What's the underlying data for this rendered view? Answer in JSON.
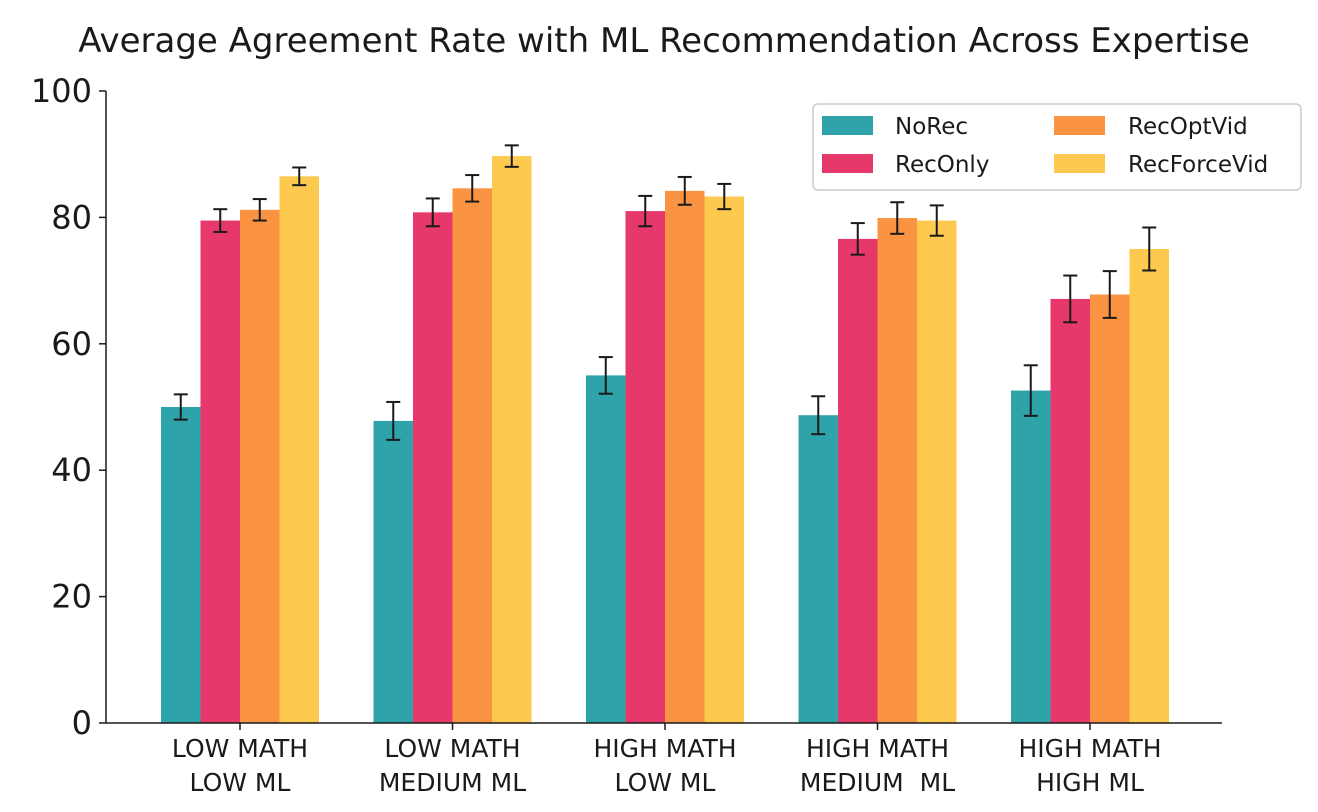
{
  "chart_data": {
    "type": "bar",
    "title": "Average Agreement Rate with ML Recommendation Across Expertise",
    "xlabel": "",
    "ylabel": "",
    "ylim": [
      0,
      100
    ],
    "yticks": [
      0,
      20,
      40,
      60,
      80,
      100
    ],
    "grid": false,
    "legend_position": "top-right",
    "categories": [
      [
        "LOW MATH",
        "LOW ML"
      ],
      [
        "LOW MATH",
        "MEDIUM ML"
      ],
      [
        "HIGH MATH",
        "LOW ML"
      ],
      [
        "HIGH MATH",
        "MEDIUM  ML"
      ],
      [
        "HIGH MATH",
        "HIGH ML"
      ]
    ],
    "series": [
      {
        "name": "NoRec",
        "color": "#2ea3a9",
        "values": [
          50.0,
          47.8,
          55.0,
          48.7,
          52.6
        ],
        "errors": [
          2.0,
          3.0,
          2.9,
          3.0,
          4.0
        ]
      },
      {
        "name": "RecOnly",
        "color": "#e6386a",
        "values": [
          79.5,
          80.8,
          81.0,
          76.6,
          67.1
        ],
        "errors": [
          1.8,
          2.2,
          2.4,
          2.5,
          3.7
        ]
      },
      {
        "name": "RecOptVid",
        "color": "#fa9443",
        "values": [
          81.2,
          84.6,
          84.2,
          79.9,
          67.8
        ],
        "errors": [
          1.7,
          2.1,
          2.2,
          2.5,
          3.7
        ]
      },
      {
        "name": "RecForceVid",
        "color": "#fdc94f",
        "values": [
          86.5,
          89.7,
          83.3,
          79.5,
          75.0
        ],
        "errors": [
          1.4,
          1.7,
          2.0,
          2.4,
          3.4
        ]
      }
    ]
  }
}
